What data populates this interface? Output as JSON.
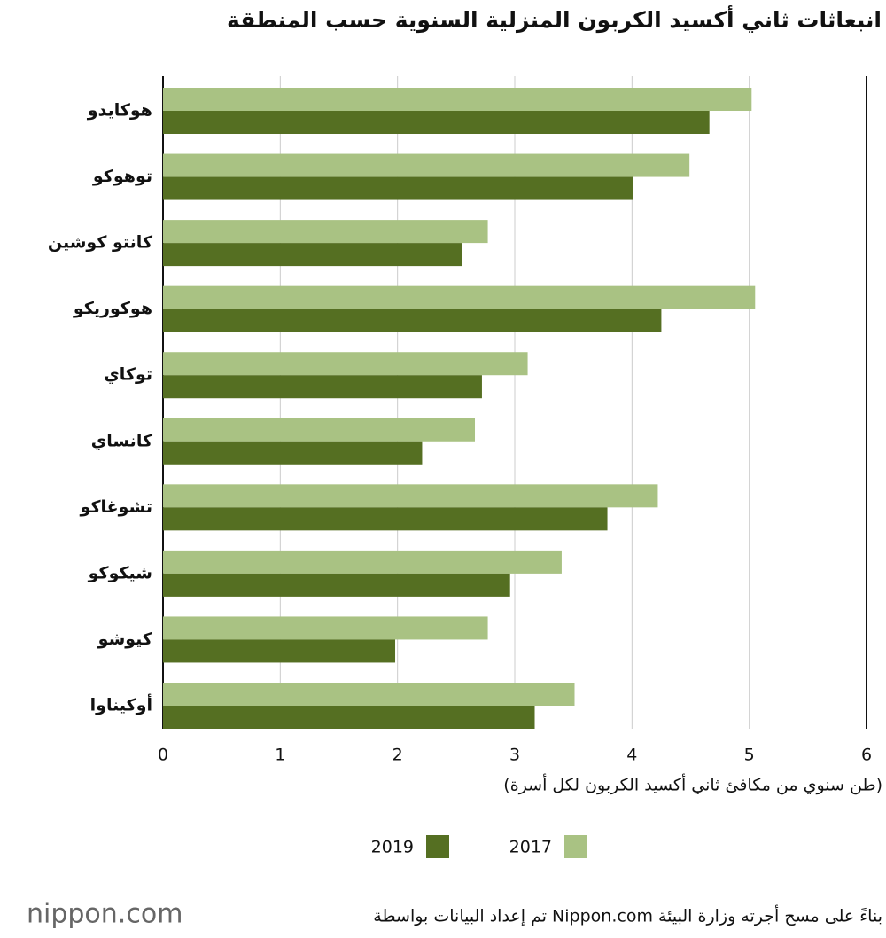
{
  "chart_data": {
    "type": "hbar",
    "title": "انبعاثات ثاني أكسيد الكربون المنزلية السنوية حسب المنطقة",
    "xlabel": "(طن سنوي من مكافئ ثاني أكسيد الكربون لكل أسرة)",
    "categories": [
      "هوكايدو",
      "توهوكو",
      "كانتو كوشين",
      "هوكوريكو",
      "توكاي",
      "كانساي",
      "تشوغاكو",
      "شيكوكو",
      "كيوشو",
      "أوكيناوا"
    ],
    "series": [
      {
        "name": "2017",
        "color": "#a9c283",
        "values": [
          5.02,
          4.49,
          2.77,
          5.05,
          3.11,
          2.66,
          4.22,
          3.4,
          2.77,
          3.51
        ]
      },
      {
        "name": "2019",
        "color": "#556f22",
        "values": [
          4.66,
          4.01,
          2.55,
          4.25,
          2.72,
          2.21,
          3.79,
          2.96,
          1.98,
          3.17
        ]
      }
    ],
    "xlim": [
      0,
      6
    ],
    "xticks": [
      0,
      1,
      2,
      3,
      4,
      5,
      6
    ],
    "grid": true
  },
  "footer": {
    "logo": "nippon.com",
    "source": "تم إعداد البيانات بواسطة Nippon.com بناءً على مسح أجرته وزارة البيئة"
  }
}
